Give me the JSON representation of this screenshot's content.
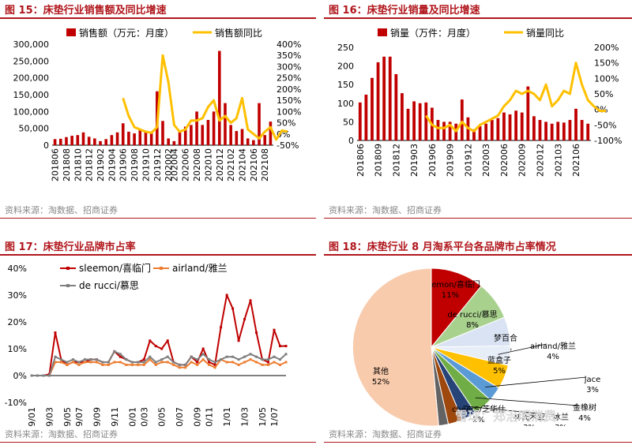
{
  "panels": {
    "fig15": {
      "title": "图 15：床垫行业销售额及同比增速",
      "source": "资料来源：淘数据、招商证券"
    },
    "fig16": {
      "title": "图 16：床垫行业销量及同比增速",
      "source": "资料来源：淘数据、招商证券"
    },
    "fig17": {
      "title": "图 17：床垫行业品牌市占率",
      "source": "资料来源：淘数据、招商证券"
    },
    "fig18": {
      "title": "图 18：床垫行业 8 月淘系平台各品牌市占率情况",
      "source": "资料来源：淘数据、招商证券"
    }
  },
  "watermark": "雪球：郑治明消费",
  "colors": {
    "bar": "#c00000",
    "line": "#ffc000",
    "sleemon": "#c00000",
    "airland": "#ed7d31",
    "derucci": "#7f7f7f",
    "title": "#b0161c"
  },
  "chart_data": [
    {
      "type": "bar",
      "id": "fig15",
      "legend": [
        "销售额（万元：月度）",
        "销售额同比"
      ],
      "x_ticks": [
        "201806",
        "201808",
        "201810",
        "201812",
        "201902",
        "201904",
        "201906",
        "201908",
        "201910",
        "201912",
        "202002",
        "202004",
        "202006",
        "202008",
        "202010",
        "202012",
        "202102",
        "202104",
        "202106",
        "202108"
      ],
      "series": [
        {
          "name": "销售额（万元：月度）",
          "axis": "left",
          "type": "bar",
          "values": [
            18000,
            19000,
            24000,
            28000,
            30000,
            38000,
            25000,
            20000,
            12000,
            18000,
            30000,
            38000,
            65000,
            40000,
            35000,
            45000,
            42000,
            40000,
            160000,
            72000,
            20000,
            12000,
            40000,
            55000,
            60000,
            100000,
            60000,
            75000,
            100000,
            280000,
            125000,
            60000,
            42000,
            48000,
            20000,
            15000,
            125000,
            30000,
            70000
          ]
        },
        {
          "name": "销售额同比",
          "axis": "right",
          "type": "line",
          "start_index": 12,
          "values": [
            1.6,
            0.8,
            0.3,
            0.2,
            0.1,
            0.05,
            0.3,
            3.5,
            2.3,
            0.4,
            0.1,
            0.2,
            0.6,
            0.6,
            0.7,
            1.2,
            1.5,
            0.6,
            0.8,
            0.5,
            0.7,
            1.6,
            0.2,
            0.0,
            -0.2,
            0.1,
            0.3,
            -0.25,
            0.15,
            0.1
          ]
        }
      ],
      "y_left": {
        "min": 0,
        "max": 300000,
        "ticks": [
          "0",
          "50,000",
          "100,000",
          "150,000",
          "200,000",
          "250,000",
          "300,000"
        ]
      },
      "y_right": {
        "min": -0.5,
        "max": 4.0,
        "ticks": [
          "-50%",
          "0%",
          "50%",
          "100%",
          "150%",
          "200%",
          "250%",
          "300%",
          "350%",
          "400%"
        ]
      }
    },
    {
      "type": "bar",
      "id": "fig16",
      "legend": [
        "销量（万件：月度）",
        "销量同比"
      ],
      "x_ticks": [
        "201806",
        "201809",
        "201812",
        "201903",
        "201906",
        "201909",
        "201912",
        "202003",
        "202006",
        "202009",
        "202012",
        "202103",
        "202106"
      ],
      "series": [
        {
          "name": "销量（万件：月度）",
          "axis": "left",
          "type": "bar",
          "values": [
            102,
            123,
            168,
            210,
            225,
            225,
            178,
            127,
            85,
            105,
            100,
            102,
            88,
            55,
            50,
            50,
            45,
            110,
            62,
            30,
            38,
            45,
            55,
            60,
            75,
            70,
            80,
            75,
            145,
            65,
            55,
            50,
            45,
            50,
            48,
            55,
            85,
            55,
            45
          ]
        },
        {
          "name": "销量同比",
          "axis": "right",
          "type": "line",
          "start_index": 11,
          "values": [
            -0.2,
            -0.5,
            -0.6,
            -0.6,
            -0.5,
            -0.7,
            -0.4,
            -0.6,
            -0.7,
            -0.5,
            -0.4,
            -0.3,
            -0.2,
            0.1,
            0.3,
            0.6,
            0.5,
            0.6,
            0.5,
            0.3,
            0.8,
            0.1,
            0.3,
            0.6,
            0.5,
            1.5,
            0.8,
            0.3,
            0.1,
            -0.05,
            -0.05
          ]
        }
      ],
      "y_left": {
        "min": 0,
        "max": 250,
        "ticks": [
          "0",
          "50",
          "100",
          "150",
          "200",
          "250"
        ]
      },
      "y_right": {
        "min": -1.0,
        "max": 2.0,
        "ticks": [
          "-100%",
          "-50%",
          "0%",
          "50%",
          "100%",
          "150%",
          "200%"
        ]
      }
    },
    {
      "type": "line",
      "id": "fig17",
      "x_ticks": [
        "2019/01",
        "2019/03",
        "2019/05",
        "2019/07",
        "2019/09",
        "2019/11",
        "2020/01",
        "2020/03",
        "2020/05",
        "2020/07",
        "2020/09",
        "2020/11",
        "2021/01",
        "2021/03",
        "2021/05",
        "2021/07"
      ],
      "series": [
        {
          "name": "sleemon/喜临门",
          "color": "#c00000",
          "values": [
            0,
            0,
            0,
            0.005,
            0.16,
            0.06,
            0.04,
            0.05,
            0.05,
            0.05,
            0.06,
            0.06,
            0.05,
            0.05,
            0.09,
            0.07,
            0.06,
            0.05,
            0.05,
            0.06,
            0.13,
            0.11,
            0.1,
            0.13,
            0.05,
            0.04,
            0.04,
            0.07,
            0.05,
            0.1,
            0.05,
            0.04,
            0.18,
            0.3,
            0.25,
            0.13,
            0.21,
            0.28,
            0.16,
            0.06,
            0.05,
            0.17,
            0.11,
            0.11
          ]
        },
        {
          "name": "airland/雅兰",
          "color": "#ed7d31",
          "values": [
            0,
            0,
            0,
            0,
            0.05,
            0.05,
            0.04,
            0.05,
            0.04,
            0.05,
            0.05,
            0.05,
            0.04,
            0.04,
            0.05,
            0.05,
            0.04,
            0.04,
            0.04,
            0.04,
            0.06,
            0.04,
            0.05,
            0.05,
            0.04,
            0.03,
            0.03,
            0.05,
            0.04,
            0.06,
            0.04,
            0.03,
            0.06,
            0.05,
            0.05,
            0.04,
            0.05,
            0.06,
            0.05,
            0.04,
            0.04,
            0.05,
            0.04,
            0.05
          ]
        },
        {
          "name": "de rucci/慕思",
          "color": "#7f7f7f",
          "values": [
            0,
            0,
            0,
            0,
            0.07,
            0.06,
            0.05,
            0.06,
            0.05,
            0.06,
            0.06,
            0.06,
            0.05,
            0.05,
            0.09,
            0.08,
            0.06,
            0.05,
            0.05,
            0.05,
            0.07,
            0.05,
            0.06,
            0.07,
            0.05,
            0.04,
            0.04,
            0.07,
            0.06,
            0.08,
            0.06,
            0.05,
            0.06,
            0.07,
            0.07,
            0.06,
            0.07,
            0.08,
            0.07,
            0.06,
            0.06,
            0.07,
            0.06,
            0.08
          ]
        }
      ],
      "y": {
        "min": -0.1,
        "max": 0.4,
        "ticks": [
          "-10%",
          "0%",
          "10%",
          "20%",
          "30%",
          "40%"
        ]
      }
    },
    {
      "type": "pie",
      "id": "fig18",
      "slices": [
        {
          "label": "sleemon/喜临门",
          "value": 11,
          "text": "11%",
          "color": "#c00000"
        },
        {
          "label": "de rucci/慕思",
          "value": 8,
          "text": "8%",
          "color": "#a9d18e"
        },
        {
          "label": "梦百合",
          "value": 6,
          "text": "6%",
          "color": "#dae3f3"
        },
        {
          "label": "airland/雅兰",
          "value": 4,
          "text": "4%",
          "color": "#e7eef8"
        },
        {
          "label": "蓝盒子",
          "value": 5,
          "text": "5%",
          "color": "#ffc000"
        },
        {
          "label": "jace",
          "value": 3,
          "text": "3%",
          "color": "#5b9bd5"
        },
        {
          "label": "金橡树",
          "value": 4,
          "text": "4%",
          "color": "#70ad47"
        },
        {
          "label": "冰兰",
          "value": 3,
          "text": "3%",
          "color": "#264478"
        },
        {
          "label": "林氏木业",
          "value": 3,
          "text": "3%",
          "color": "#9e480e"
        },
        {
          "label": "cheerS/芝华仕",
          "value": 2,
          "text": "2%",
          "color": "#636363"
        },
        {
          "label": "其他",
          "value": 52,
          "text": "52%",
          "color": "#f8cbad"
        }
      ]
    }
  ]
}
